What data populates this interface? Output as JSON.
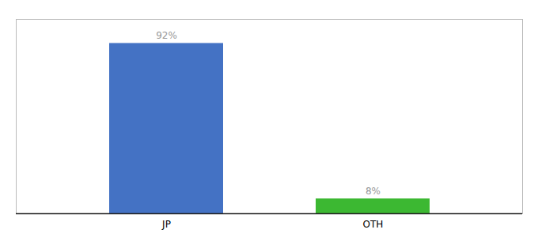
{
  "chart_data": {
    "type": "bar",
    "categories": [
      "JP",
      "OTH"
    ],
    "values": [
      92,
      8
    ],
    "value_labels": [
      "92%",
      "8%"
    ],
    "colors": [
      "#4472c4",
      "#3cb832"
    ],
    "ylim": [
      0,
      105
    ],
    "data_labels": true,
    "tick_labels": "x"
  }
}
